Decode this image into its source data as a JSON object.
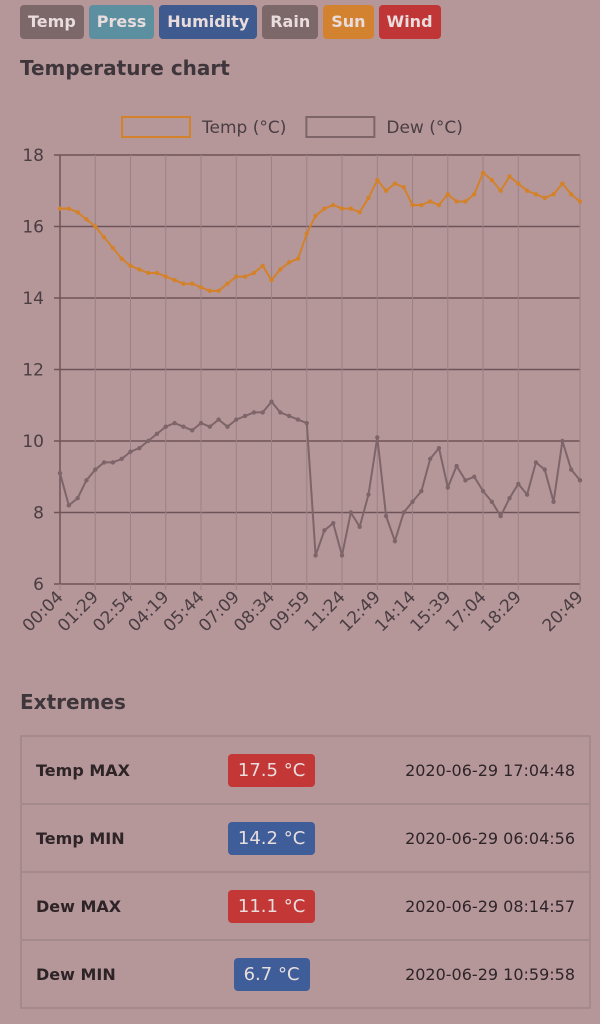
{
  "buttons": [
    {
      "label": "Temp",
      "color": "#7c6769"
    },
    {
      "label": "Press",
      "color": "#5c8f9f"
    },
    {
      "label": "Humidity",
      "color": "#3f5a8e"
    },
    {
      "label": "Rain",
      "color": "#7c6769"
    },
    {
      "label": "Sun",
      "color": "#d3822f"
    },
    {
      "label": "Wind",
      "color": "#c03535"
    }
  ],
  "chart_title": "Temperature chart",
  "chart_data": {
    "type": "line",
    "categories": [
      "00:04",
      null,
      null,
      null,
      "01:29",
      null,
      null,
      null,
      "02:54",
      null,
      null,
      null,
      "04:19",
      null,
      null,
      null,
      "05:44",
      null,
      null,
      null,
      "07:09",
      null,
      null,
      null,
      "08:34",
      null,
      null,
      null,
      "09:59",
      null,
      null,
      null,
      "11:24",
      null,
      null,
      null,
      "12:49",
      null,
      null,
      null,
      "14:14",
      null,
      null,
      null,
      "15:39",
      null,
      null,
      null,
      "17:04",
      null,
      null,
      null,
      "18:29",
      null,
      null,
      null,
      null,
      null,
      null,
      "20:49"
    ],
    "series": [
      {
        "name": "Temp (°C)",
        "color": "#d4822a",
        "values": [
          16.5,
          16.5,
          16.4,
          16.2,
          16.0,
          15.7,
          15.4,
          15.1,
          14.9,
          14.8,
          14.7,
          14.7,
          14.6,
          14.5,
          14.4,
          14.4,
          14.3,
          14.2,
          14.2,
          14.4,
          14.6,
          14.6,
          14.7,
          14.9,
          14.5,
          14.8,
          15.0,
          15.1,
          15.8,
          16.3,
          16.5,
          16.6,
          16.5,
          16.5,
          16.4,
          16.8,
          17.3,
          17.0,
          17.2,
          17.1,
          16.6,
          16.6,
          16.7,
          16.6,
          16.9,
          16.7,
          16.7,
          16.9,
          17.5,
          17.3,
          17.0,
          17.4,
          17.2,
          17.0,
          16.9,
          16.8,
          16.9,
          17.2,
          16.9,
          16.7
        ]
      },
      {
        "name": "Dew (°C)",
        "color": "#7e6569",
        "values": [
          9.1,
          8.2,
          8.4,
          8.9,
          9.2,
          9.4,
          9.4,
          9.5,
          9.7,
          9.8,
          10.0,
          10.2,
          10.4,
          10.5,
          10.4,
          10.3,
          10.5,
          10.4,
          10.6,
          10.4,
          10.6,
          10.7,
          10.8,
          10.8,
          11.1,
          10.8,
          10.7,
          10.6,
          10.5,
          6.8,
          7.5,
          7.7,
          6.8,
          8.0,
          7.6,
          8.5,
          10.1,
          7.9,
          7.2,
          8.0,
          8.3,
          8.6,
          9.5,
          9.8,
          8.7,
          9.3,
          8.9,
          9.0,
          8.6,
          8.3,
          7.9,
          8.4,
          8.8,
          8.5,
          9.4,
          9.2,
          8.3,
          10.0,
          9.2,
          8.9
        ]
      }
    ],
    "ylim": [
      6,
      18
    ],
    "yticks": [
      6,
      8,
      10,
      12,
      14,
      16,
      18
    ],
    "grid": true
  },
  "extremes_title": "Extremes",
  "extremes": [
    {
      "label": "Temp MAX",
      "value": "17.5 °C",
      "color": "#c43737",
      "time": "2020-06-29 17:04:48"
    },
    {
      "label": "Temp MIN",
      "value": "14.2 °C",
      "color": "#3f5d98",
      "time": "2020-06-29 06:04:56"
    },
    {
      "label": "Dew MAX",
      "value": "11.1 °C",
      "color": "#c43737",
      "time": "2020-06-29 08:14:57"
    },
    {
      "label": "Dew MIN",
      "value": "6.7 °C",
      "color": "#3f5d98",
      "time": "2020-06-29 10:59:58"
    }
  ]
}
